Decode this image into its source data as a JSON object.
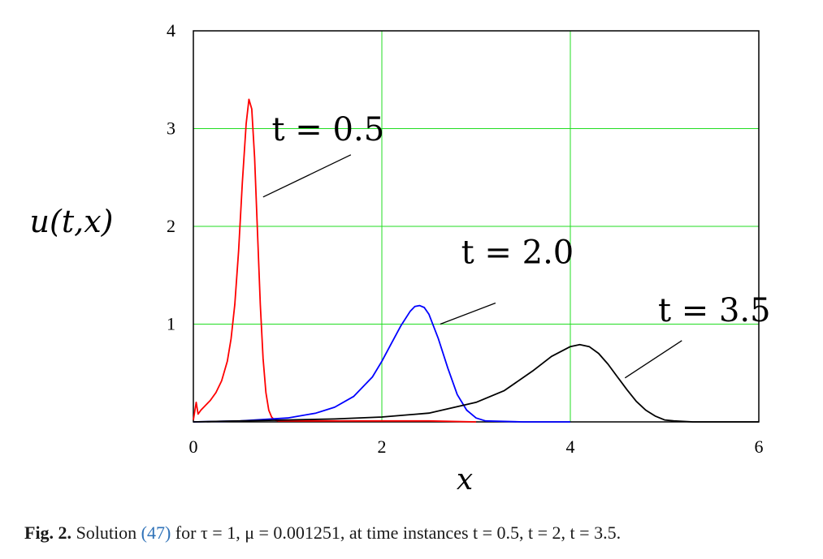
{
  "chart_data": {
    "type": "line",
    "xlabel": "x",
    "ylabel": "u(t,x)",
    "xlim": [
      0,
      6
    ],
    "ylim": [
      0,
      4
    ],
    "x_ticks": [
      "0",
      "2",
      "4",
      "6"
    ],
    "y_ticks": [
      "1",
      "2",
      "3",
      "4"
    ],
    "grid": true,
    "series": [
      {
        "name": "t = 0.5",
        "color": "#ff0000",
        "x": [
          0.0,
          0.03,
          0.05,
          0.08,
          0.12,
          0.18,
          0.24,
          0.3,
          0.36,
          0.4,
          0.44,
          0.48,
          0.52,
          0.56,
          0.59,
          0.62,
          0.65,
          0.68,
          0.71,
          0.74,
          0.77,
          0.8,
          0.83,
          0.86,
          0.9,
          1.0,
          1.5,
          2.0,
          2.5,
          3.0
        ],
        "y": [
          0.02,
          0.2,
          0.08,
          0.12,
          0.16,
          0.22,
          0.3,
          0.42,
          0.62,
          0.85,
          1.2,
          1.75,
          2.45,
          3.05,
          3.3,
          3.2,
          2.7,
          1.95,
          1.2,
          0.65,
          0.3,
          0.12,
          0.05,
          0.02,
          0.01,
          0.01,
          0.01,
          0.01,
          0.01,
          0.0
        ]
      },
      {
        "name": "t = 2.0",
        "color": "#0000ff",
        "x": [
          0.0,
          0.5,
          1.0,
          1.3,
          1.5,
          1.7,
          1.9,
          2.0,
          2.1,
          2.2,
          2.3,
          2.35,
          2.4,
          2.45,
          2.5,
          2.6,
          2.7,
          2.8,
          2.9,
          3.0,
          3.1,
          3.5,
          4.0
        ],
        "y": [
          0.0,
          0.01,
          0.04,
          0.09,
          0.15,
          0.26,
          0.46,
          0.62,
          0.8,
          0.98,
          1.13,
          1.18,
          1.19,
          1.17,
          1.1,
          0.85,
          0.55,
          0.28,
          0.12,
          0.04,
          0.01,
          0.0,
          0.0
        ]
      },
      {
        "name": "t = 3.5",
        "color": "#000000",
        "x": [
          0.0,
          0.5,
          1.0,
          1.5,
          2.0,
          2.5,
          3.0,
          3.3,
          3.6,
          3.8,
          4.0,
          4.1,
          4.2,
          4.3,
          4.4,
          4.5,
          4.6,
          4.7,
          4.8,
          4.9,
          5.0,
          5.1,
          5.3,
          6.0
        ],
        "y": [
          0.0,
          0.01,
          0.02,
          0.03,
          0.05,
          0.09,
          0.2,
          0.32,
          0.52,
          0.67,
          0.77,
          0.79,
          0.77,
          0.7,
          0.59,
          0.46,
          0.33,
          0.21,
          0.12,
          0.06,
          0.02,
          0.01,
          0.0,
          0.0
        ]
      }
    ],
    "annotations": [
      {
        "text": "t = 0.5",
        "at": [
          0.74,
          2.3
        ]
      },
      {
        "text": "t = 2.0",
        "at": [
          2.62,
          1.0
        ]
      },
      {
        "text": "t = 3.5",
        "at": [
          4.58,
          0.45
        ]
      }
    ]
  },
  "caption": {
    "label": "Fig. 2.",
    "text_before_ref": "Solution",
    "ref": "(47)",
    "text_after_ref": "for τ = 1, μ = 0.001251, at time instances t = 0.5, t = 2, t = 3.5."
  }
}
